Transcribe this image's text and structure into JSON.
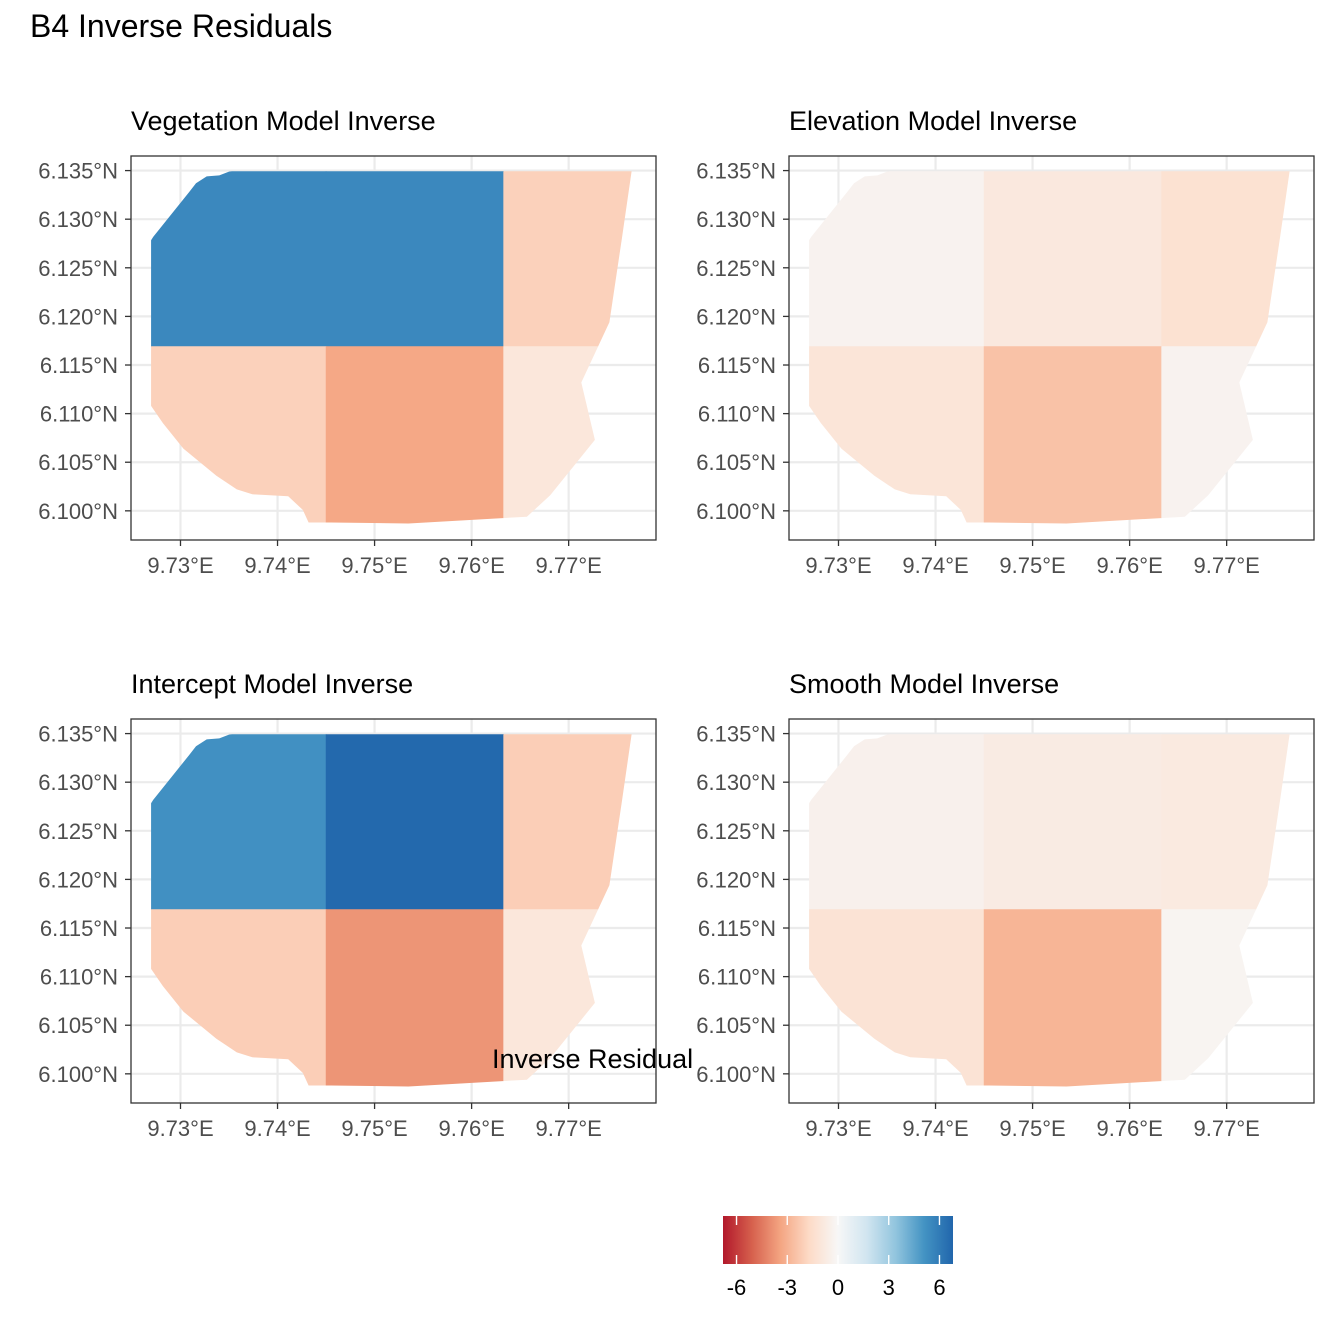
{
  "title": "B4 Inverse Residuals",
  "chart_data": {
    "type": "heatmap",
    "x_ticks": [
      "9.73°E",
      "9.74°E",
      "9.75°E",
      "9.76°E",
      "9.77°E"
    ],
    "y_ticks": [
      "6.135°N",
      "6.130°N",
      "6.125°N",
      "6.120°N",
      "6.115°N",
      "6.110°N",
      "6.105°N",
      "6.100°N"
    ],
    "x_tick_values": [
      9.73,
      9.74,
      9.75,
      9.76,
      9.77
    ],
    "y_tick_values": [
      6.135,
      6.13,
      6.125,
      6.12,
      6.115,
      6.11,
      6.105,
      6.1
    ],
    "xlim": [
      9.7249,
      9.779
    ],
    "ylim": [
      6.097,
      6.1365
    ],
    "grid_x_edges": [
      9.727,
      9.745,
      9.7633,
      9.7765
    ],
    "grid_y_edges": [
      6.0987,
      6.1169,
      6.1349
    ],
    "boundary": [
      [
        9.7355,
        6.135
      ],
      [
        9.7765,
        6.135
      ],
      [
        9.7755,
        6.1281
      ],
      [
        9.7742,
        6.1194
      ],
      [
        9.7713,
        6.1132
      ],
      [
        9.7727,
        6.1073
      ],
      [
        9.7681,
        6.1016
      ],
      [
        9.7657,
        6.0994
      ],
      [
        9.7535,
        6.0987
      ],
      [
        9.7455,
        6.0988
      ],
      [
        9.7432,
        6.0988
      ],
      [
        9.7426,
        6.1001
      ],
      [
        9.7411,
        6.1015
      ],
      [
        9.7374,
        6.1017
      ],
      [
        9.7358,
        6.1022
      ],
      [
        9.7337,
        6.1036
      ],
      [
        9.7303,
        6.1064
      ],
      [
        9.7282,
        6.109
      ],
      [
        9.726,
        6.1122
      ],
      [
        9.7259,
        6.1137
      ],
      [
        9.7252,
        6.1182
      ],
      [
        9.7245,
        6.124
      ],
      [
        9.7272,
        6.1282
      ],
      [
        9.7309,
        6.1328
      ],
      [
        9.7316,
        6.1337
      ],
      [
        9.7327,
        6.1344
      ],
      [
        9.734,
        6.1345
      ],
      [
        9.735,
        6.1349
      ],
      [
        9.7355,
        6.135
      ]
    ],
    "panels": [
      {
        "title": "Vegetation Model Inverse",
        "cells": [
          [
            5.5,
            5.5,
            -2.0
          ],
          [
            -2.0,
            -3.3,
            -1.0
          ]
        ]
      },
      {
        "title": "Elevation Model Inverse",
        "cells": [
          [
            -0.3,
            -0.9,
            -1.3
          ],
          [
            -1.1,
            -2.5,
            -0.3
          ]
        ]
      },
      {
        "title": "Intercept Model Inverse",
        "cells": [
          [
            5.2,
            6.7,
            -2.1
          ],
          [
            -2.1,
            -3.8,
            -1.0
          ]
        ]
      },
      {
        "title": "Smooth Model Inverse",
        "cells": [
          [
            -0.4,
            -0.7,
            -0.8
          ],
          [
            -1.2,
            -2.9,
            -0.2
          ]
        ]
      }
    ],
    "legend": {
      "title": "Inverse Residual",
      "ticks": [
        "-6",
        "-3",
        "0",
        "3",
        "6"
      ],
      "tick_values": [
        -6,
        -3,
        0,
        3,
        6
      ],
      "range": [
        -6.8,
        6.8
      ]
    },
    "palette": [
      "#B2182B",
      "#D6604D",
      "#F4A582",
      "#FDDBC7",
      "#F7F7F7",
      "#D1E5F0",
      "#92C5DE",
      "#4393C3",
      "#2166AC"
    ],
    "grid": true
  }
}
